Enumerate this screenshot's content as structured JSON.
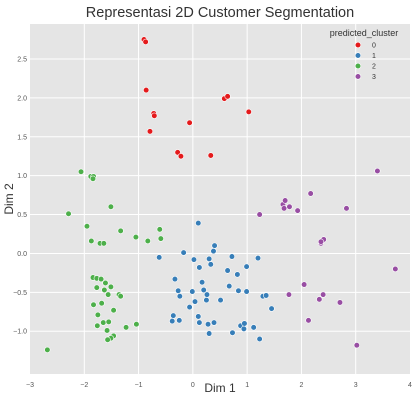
{
  "chart_data": {
    "type": "scatter",
    "title": "Representasi 2D Customer Segmentation",
    "xlabel": "Dim 1",
    "ylabel": "Dim 2",
    "xlim": [
      -3,
      4
    ],
    "ylim": [
      -1.55,
      2.95
    ],
    "x_ticks": [
      -3,
      -2,
      -1,
      0,
      1,
      2,
      3,
      4
    ],
    "y_ticks": [
      -1.0,
      -0.5,
      0.0,
      0.5,
      1.0,
      1.5,
      2.0,
      2.5
    ],
    "x_tick_labels": [
      "−3",
      "−2",
      "−1",
      "0",
      "1",
      "2",
      "3",
      "4"
    ],
    "y_tick_labels": [
      "−1.0",
      "−0.5",
      "0.0",
      "0.5",
      "1.0",
      "1.5",
      "2.0",
      "2.5"
    ],
    "grid": true,
    "background": "#e5e5e5",
    "legend": {
      "title": "predicted_cluster",
      "placement": "top-right"
    },
    "series": [
      {
        "name": "0",
        "color": "#e41a1c",
        "points": [
          [
            -0.9,
            2.75
          ],
          [
            -0.87,
            2.72
          ],
          [
            -0.86,
            2.1
          ],
          [
            -0.72,
            1.8
          ],
          [
            -0.71,
            1.77
          ],
          [
            -0.79,
            1.57
          ],
          [
            -0.06,
            1.68
          ],
          [
            0.58,
            1.99
          ],
          [
            0.64,
            2.02
          ],
          [
            1.03,
            1.82
          ],
          [
            -0.28,
            1.3
          ],
          [
            -0.22,
            1.25
          ],
          [
            0.33,
            1.26
          ]
        ]
      },
      {
        "name": "1",
        "color": "#377eb8",
        "points": [
          [
            0.1,
            0.39
          ],
          [
            -0.17,
            0.01
          ],
          [
            0.38,
            0.03
          ],
          [
            0.4,
            0.1
          ],
          [
            -0.62,
            -0.05
          ],
          [
            -0.33,
            -0.33
          ],
          [
            0.02,
            -0.08
          ],
          [
            0.12,
            -0.18
          ],
          [
            0.3,
            -0.07
          ],
          [
            0.33,
            -0.14
          ],
          [
            0.64,
            -0.22
          ],
          [
            0.72,
            -0.04
          ],
          [
            0.82,
            -0.27
          ],
          [
            0.99,
            -0.17
          ],
          [
            1.2,
            -0.06
          ],
          [
            -0.27,
            -0.48
          ],
          [
            -0.24,
            -0.55
          ],
          [
            0.17,
            -0.37
          ],
          [
            0.2,
            -0.47
          ],
          [
            -0.01,
            -0.49
          ],
          [
            0.04,
            -0.62
          ],
          [
            0.25,
            -0.6
          ],
          [
            0.26,
            -0.53
          ],
          [
            -0.06,
            -0.69
          ],
          [
            0.51,
            -0.6
          ],
          [
            0.67,
            -0.42
          ],
          [
            0.84,
            -0.48
          ],
          [
            0.99,
            -0.49
          ],
          [
            1.29,
            -0.55
          ],
          [
            1.35,
            -0.54
          ],
          [
            1.45,
            -0.71
          ],
          [
            -0.36,
            -0.8
          ],
          [
            -0.25,
            -0.86
          ],
          [
            -0.38,
            -0.87
          ],
          [
            0.1,
            -0.81
          ],
          [
            0.12,
            -0.89
          ],
          [
            0.28,
            -0.91
          ],
          [
            0.39,
            -0.89
          ],
          [
            0.88,
            -0.93
          ],
          [
            0.94,
            -0.97
          ],
          [
            0.95,
            -0.9
          ],
          [
            1.12,
            -0.95
          ],
          [
            1.23,
            -1.1
          ],
          [
            0.3,
            -1.03
          ],
          [
            0.73,
            -1.02
          ]
        ]
      },
      {
        "name": "2",
        "color": "#4daf4a",
        "points": [
          [
            -2.06,
            1.05
          ],
          [
            -1.88,
            0.99
          ],
          [
            -1.83,
            0.99
          ],
          [
            -1.84,
            0.96
          ],
          [
            -2.29,
            0.51
          ],
          [
            -1.51,
            0.6
          ],
          [
            -1.95,
            0.35
          ],
          [
            -1.87,
            0.16
          ],
          [
            -1.71,
            0.13
          ],
          [
            -1.64,
            0.13
          ],
          [
            -1.33,
            0.29
          ],
          [
            -1.05,
            0.21
          ],
          [
            -0.83,
            0.16
          ],
          [
            -0.59,
            0.19
          ],
          [
            -0.61,
            0.31
          ],
          [
            -1.84,
            -0.31
          ],
          [
            -1.77,
            -0.32
          ],
          [
            -1.69,
            -0.33
          ],
          [
            -1.83,
            -0.66
          ],
          [
            -1.63,
            -0.47
          ],
          [
            -1.77,
            -0.44
          ],
          [
            -1.61,
            -0.38
          ],
          [
            -1.51,
            -0.43
          ],
          [
            -1.36,
            -0.53
          ],
          [
            -1.33,
            -0.55
          ],
          [
            -1.56,
            -0.53
          ],
          [
            -1.68,
            -0.64
          ],
          [
            -1.46,
            -0.73
          ],
          [
            -1.75,
            -0.79
          ],
          [
            -1.65,
            -0.89
          ],
          [
            -1.76,
            -0.93
          ],
          [
            -1.55,
            -0.88
          ],
          [
            -1.58,
            -0.99
          ],
          [
            -1.46,
            -1.06
          ],
          [
            -1.51,
            -1.09
          ],
          [
            -1.57,
            -1.11
          ],
          [
            -1.23,
            -0.95
          ],
          [
            -1.04,
            -0.91
          ],
          [
            -2.68,
            -1.24
          ]
        ]
      },
      {
        "name": "3",
        "color": "#984ea3",
        "points": [
          [
            1.23,
            0.5
          ],
          [
            1.66,
            0.63
          ],
          [
            1.7,
            0.68
          ],
          [
            1.68,
            0.58
          ],
          [
            1.78,
            0.6
          ],
          [
            1.93,
            0.55
          ],
          [
            2.17,
            0.77
          ],
          [
            2.36,
            0.13
          ],
          [
            2.41,
            0.18
          ],
          [
            2.36,
            0.15
          ],
          [
            2.83,
            0.58
          ],
          [
            3.4,
            1.06
          ],
          [
            3.73,
            -0.2
          ],
          [
            1.77,
            -0.53
          ],
          [
            2.05,
            -0.4
          ],
          [
            2.33,
            -0.59
          ],
          [
            2.4,
            -0.53
          ],
          [
            2.13,
            -0.86
          ],
          [
            2.71,
            -0.63
          ],
          [
            3.02,
            -1.18
          ]
        ]
      }
    ]
  }
}
